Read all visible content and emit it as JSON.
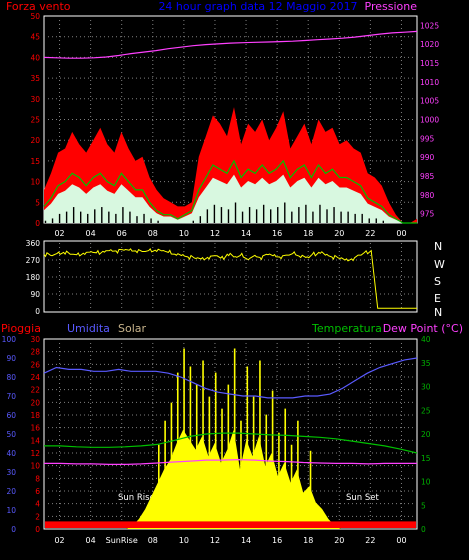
{
  "colors": {
    "background": "#000000",
    "frame": "#ffffff",
    "grid": "#808080",
    "wind_red": "#ff0000",
    "wind_green": "#00c000",
    "wind_white": "#d8f8e0",
    "pressure": "#ff40ff",
    "direction": "#ffff00",
    "rain": "#ff0000",
    "humidity": "#5a5aff",
    "solar": "#ffff00",
    "temperature": "#00c000",
    "dewpoint": "#ff40ff",
    "title": "#0000ff",
    "solar_label": "#c8b48c",
    "temp_axis": "#00b000",
    "sun_text": "#ffffff",
    "axis_text": "#ffffff"
  },
  "chart_data": [
    {
      "type": "line",
      "title": "24 hour graph data  12 Maggio 2017",
      "left_axis_label": "Forza vento",
      "right_axis_label": "Pressione",
      "x_ticks": [
        "02",
        "04",
        "06",
        "08",
        "10",
        "12",
        "14",
        "16",
        "18",
        "20",
        "22",
        "00"
      ],
      "y_ticks_left": [
        "0",
        "5",
        "10",
        "15",
        "20",
        "25",
        "30",
        "35",
        "40",
        "45",
        "50"
      ],
      "y_ticks_right": [
        "975",
        "980",
        "985",
        "990",
        "995",
        "1000",
        "1005",
        "1010",
        "1015",
        "1020",
        "1025"
      ],
      "ylim_left": [
        0,
        50
      ],
      "ylim_right": [
        972.5,
        1027.5
      ],
      "grid": true,
      "series": [
        {
          "role": "gust",
          "values": [
            8,
            12,
            17,
            18,
            22,
            19,
            17,
            20,
            23,
            19,
            17,
            22,
            18,
            15,
            16,
            11,
            8,
            6,
            5,
            4,
            4,
            5,
            16,
            21,
            26,
            24,
            21,
            28,
            19,
            24,
            22,
            25,
            20,
            23,
            27,
            18,
            21,
            24,
            19,
            25,
            22,
            23,
            19,
            20,
            18,
            17,
            12,
            11,
            9,
            5,
            2,
            0,
            0,
            1
          ]
        },
        {
          "role": "average",
          "values": [
            4,
            6,
            9,
            10,
            12,
            11,
            9,
            11,
            12,
            10,
            9,
            12,
            10,
            8,
            8,
            5,
            3,
            2,
            2,
            1,
            2,
            3,
            8,
            11,
            14,
            13,
            12,
            15,
            11,
            13,
            12,
            14,
            12,
            13,
            15,
            11,
            13,
            14,
            11,
            14,
            12,
            13,
            11,
            11,
            10,
            9,
            6,
            5,
            4,
            2,
            1,
            0,
            0,
            0
          ]
        },
        {
          "role": "minimum",
          "values": [
            1,
            2,
            4,
            5,
            7,
            5,
            4,
            6,
            7,
            5,
            4,
            7,
            5,
            3,
            4,
            2,
            1,
            0,
            0,
            0,
            0,
            1,
            3,
            6,
            8,
            7,
            6,
            9,
            5,
            7,
            6,
            8,
            6,
            7,
            9,
            5,
            7,
            8,
            5,
            8,
            6,
            7,
            5,
            5,
            4,
            4,
            2,
            2,
            1,
            0,
            0,
            0,
            0,
            0
          ]
        },
        {
          "role": "pressure",
          "values": [
            1016.5,
            1016.4,
            1016.3,
            1016.3,
            1016.4,
            1016.6,
            1017.0,
            1017.5,
            1017.9,
            1018.3,
            1018.8,
            1019.2,
            1019.6,
            1019.9,
            1020.1,
            1020.3,
            1020.4,
            1020.5,
            1020.6,
            1020.7,
            1020.8,
            1021.0,
            1021.2,
            1021.4,
            1021.6,
            1021.9,
            1022.3,
            1022.7,
            1023.0,
            1023.2,
            1023.4
          ]
        }
      ]
    },
    {
      "type": "line",
      "title": "",
      "x_ticks": [
        "02",
        "04",
        "06",
        "08",
        "10",
        "12",
        "14",
        "16",
        "18",
        "20",
        "22",
        "00"
      ],
      "y_ticks_left": [
        "0",
        "90",
        "180",
        "270",
        "360"
      ],
      "direction_labels": [
        "N",
        "W",
        "S",
        "E",
        "N"
      ],
      "ylim": [
        0,
        360
      ],
      "grid": true,
      "series": [
        {
          "role": "wind_direction",
          "values": [
            300,
            295,
            305,
            310,
            300,
            298,
            306,
            312,
            308,
            316,
            320,
            318,
            324,
            322,
            318,
            315,
            320,
            322,
            318,
            310,
            300,
            294,
            286,
            280,
            276,
            284,
            292,
            280,
            300,
            286,
            294,
            276,
            290,
            284,
            300,
            292,
            286,
            296,
            304,
            290,
            284,
            300,
            310,
            296,
            286,
            280,
            270,
            276,
            296,
            310,
            320,
            15,
            15,
            15,
            15,
            15,
            15,
            15
          ]
        }
      ]
    },
    {
      "type": "area",
      "title": "",
      "labels": {
        "rain": "Pioggia",
        "humidity": "Umidita",
        "solar": "Solar",
        "temperature": "Temperatura",
        "dewpoint": "Dew Point (°C)"
      },
      "annotations": [
        "Sun Rise",
        "Sun Set",
        "SunRise"
      ],
      "x_ticks": [
        "02",
        "04",
        "SunRise",
        "08",
        "10",
        "12",
        "14",
        "16",
        "18",
        "20",
        "22",
        "00"
      ],
      "y_ticks_humidity": [
        "0",
        "10",
        "20",
        "30",
        "40",
        "50",
        "60",
        "70",
        "80",
        "90",
        "100"
      ],
      "y_ticks_rain": [
        "0",
        "2",
        "4",
        "6",
        "8",
        "10",
        "12",
        "14",
        "16",
        "18",
        "20",
        "22",
        "24",
        "26",
        "28",
        "30"
      ],
      "y_ticks_temperature": [
        "0",
        "5",
        "10",
        "15",
        "20",
        "25",
        "30",
        "35",
        "40"
      ],
      "ylim_humidity": [
        0,
        100
      ],
      "ylim_rain": [
        0,
        30
      ],
      "ylim_temperature": [
        0,
        40
      ],
      "grid": true,
      "series": [
        {
          "role": "rain",
          "values": [
            1.2,
            1.2
          ]
        },
        {
          "role": "humidity",
          "values": [
            82,
            85,
            84,
            84,
            83,
            83,
            84,
            83,
            83,
            83,
            82,
            80,
            77,
            74,
            72,
            71,
            70,
            70,
            69,
            69,
            69,
            70,
            70,
            71,
            74,
            78,
            82,
            85,
            87,
            89,
            90
          ]
        },
        {
          "role": "temperature",
          "values": [
            17.5,
            17.5,
            17.3,
            17.2,
            17.2,
            17.3,
            17.5,
            17.8,
            18.6,
            19.5,
            20.0,
            20.2,
            20.2,
            20.0,
            19.8,
            19.7,
            19.5,
            19.3,
            19.0,
            18.5,
            18.0,
            17.5,
            16.8,
            16.0
          ]
        },
        {
          "role": "dewpoint",
          "values": [
            13.8,
            13.8,
            13.7,
            13.7,
            13.6,
            13.6,
            13.7,
            13.9,
            14.1,
            14.3,
            14.5,
            14.5,
            14.6,
            14.5,
            14.3,
            14.2,
            14.0,
            13.9,
            13.8,
            13.8,
            13.7,
            13.8,
            13.8,
            13.8
          ]
        },
        {
          "role": "solar",
          "values": [
            0,
            0,
            0,
            0,
            0,
            0,
            0,
            0,
            0,
            0,
            0,
            0,
            0,
            0,
            1,
            3,
            6,
            10,
            14,
            18,
            21,
            26,
            30,
            27,
            24,
            28,
            22,
            26,
            20,
            24,
            30,
            18,
            27,
            22,
            28,
            19,
            23,
            16,
            20,
            14,
            18,
            11,
            13,
            8,
            6,
            3,
            1,
            0,
            0,
            0,
            0,
            0,
            0,
            0,
            0,
            0,
            0,
            0,
            0,
            0
          ]
        }
      ]
    }
  ]
}
